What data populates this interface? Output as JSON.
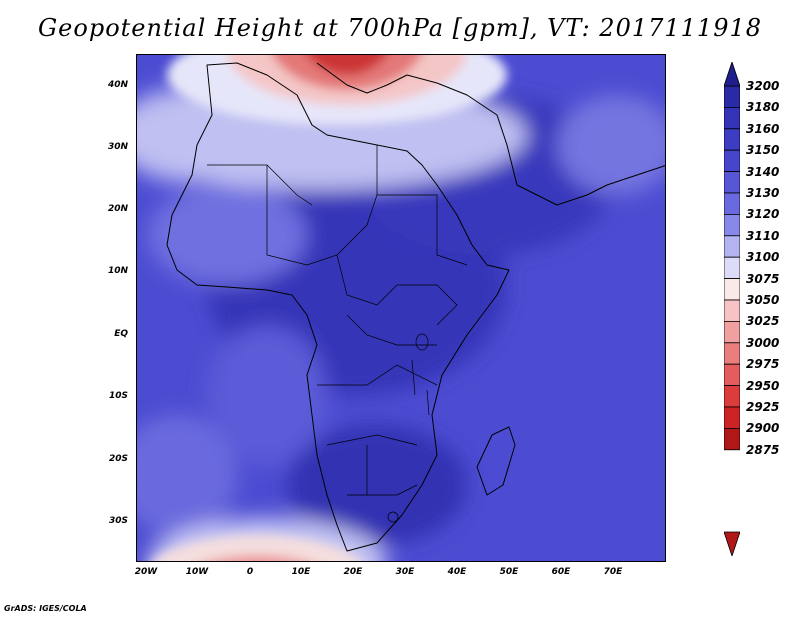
{
  "title": "Geopotential Height at 700hPa [gpm], VT: 2017111918",
  "credit": "GrADS: IGES/COLA",
  "map": {
    "lat_ticks": [
      "40N",
      "30N",
      "20N",
      "10N",
      "EQ",
      "10S",
      "20S",
      "30S"
    ],
    "lon_ticks": [
      "20W",
      "10W",
      "0",
      "10E",
      "20E",
      "30E",
      "40E",
      "50E",
      "60E",
      "70E"
    ]
  },
  "colorbar": {
    "levels": [
      "3200",
      "3180",
      "3160",
      "3150",
      "3140",
      "3130",
      "3120",
      "3110",
      "3100",
      "3075",
      "3050",
      "3025",
      "3000",
      "2975",
      "2950",
      "2925",
      "2900",
      "2875"
    ],
    "colors": [
      "#1e1e8c",
      "#2a2aa6",
      "#3434b8",
      "#3d3dc4",
      "#4646cc",
      "#5656d6",
      "#6a6ae0",
      "#8888ea",
      "#b4b4f2",
      "#dcdcf8",
      "#fbe8e8",
      "#f6c4c4",
      "#f0a0a0",
      "#ea7e7e",
      "#e45c5c",
      "#dc3c3c",
      "#cc2424",
      "#b01818"
    ]
  }
}
